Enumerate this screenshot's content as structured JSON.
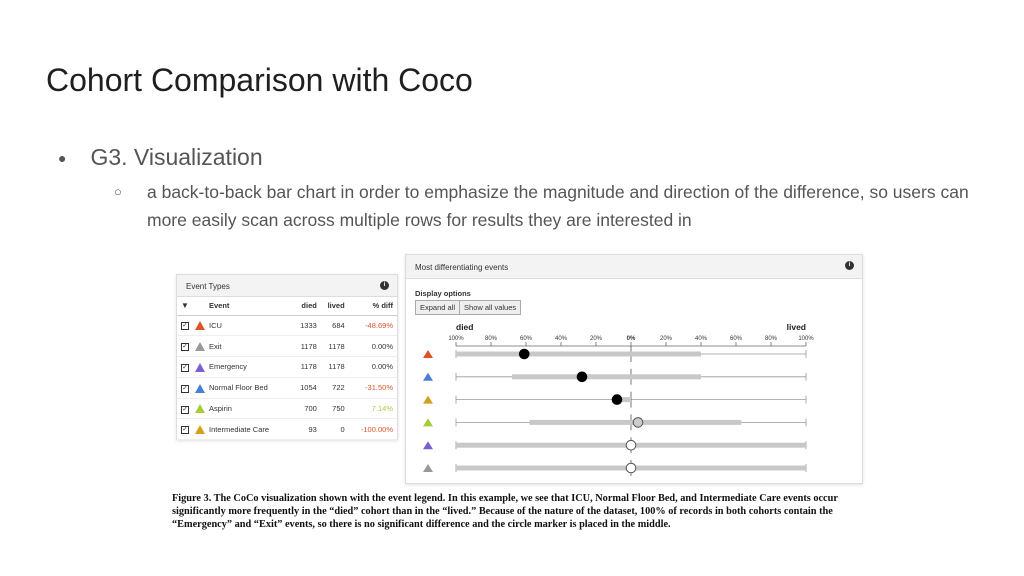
{
  "slide": {
    "title": "Cohort Comparison with Coco",
    "bullet": "G3. Visualization",
    "sub_bullet": "a back-to-back bar chart in order to emphasize the magnitude and direction of the difference, so users can more easily scan across multiple rows for results they are interested in"
  },
  "event_types": {
    "title": "Event Types",
    "headers": {
      "event": "Event",
      "died": "died",
      "lived": "lived",
      "diff": "% diff"
    },
    "rows": [
      {
        "name": "ICU",
        "died": "1333",
        "lived": "684",
        "diff": "-48.69%",
        "color": "#d9542b",
        "diff_color": "#d9542b"
      },
      {
        "name": "Exit",
        "died": "1178",
        "lived": "1178",
        "diff": "0.00%",
        "color": "#999999",
        "diff_color": "#333333"
      },
      {
        "name": "Emergency",
        "died": "1178",
        "lived": "1178",
        "diff": "0.00%",
        "color": "#7b5fd1",
        "diff_color": "#333333"
      },
      {
        "name": "Normal Floor Bed",
        "died": "1054",
        "lived": "722",
        "diff": "-31.50%",
        "color": "#4a7fd4",
        "diff_color": "#d9542b"
      },
      {
        "name": "Aspirin",
        "died": "700",
        "lived": "750",
        "diff": "7.14%",
        "color": "#a6cc3a",
        "diff_color": "#a6cc3a"
      },
      {
        "name": "Intermediate Care",
        "died": "93",
        "lived": "0",
        "diff": "-100.00%",
        "color": "#d4a020",
        "diff_color": "#d9542b"
      }
    ]
  },
  "diff_panel": {
    "title": "Most differentiating events",
    "display_options": "Display options",
    "expand_all": "Expand all",
    "show_all_values": "Show all values"
  },
  "chart_data": {
    "type": "scatter",
    "left_label": "died",
    "right_label": "lived",
    "ticks": [
      "100%",
      "80%",
      "60%",
      "40%",
      "20%",
      "0%",
      "20%",
      "40%",
      "60%",
      "80%",
      "100%"
    ],
    "rows": [
      {
        "event": "ICU",
        "color": "#d9542b",
        "bar": [
          -100,
          40
        ],
        "marker": -61,
        "marker_style": "filled"
      },
      {
        "event": "Normal Floor Bed",
        "color": "#4a7fd4",
        "bar": [
          -68,
          40
        ],
        "marker": -28,
        "marker_style": "filled"
      },
      {
        "event": "Intermediate Care",
        "color": "#d4a020",
        "bar": [
          -8,
          0
        ],
        "marker": -8,
        "marker_style": "filled"
      },
      {
        "event": "Aspirin",
        "color": "#a6cc3a",
        "bar": [
          -58,
          63
        ],
        "marker": 4,
        "marker_style": "hollow-gray"
      },
      {
        "event": "Emergency",
        "color": "#7b5fd1",
        "bar": [
          -100,
          100
        ],
        "marker": 0,
        "marker_style": "hollow"
      },
      {
        "event": "Exit",
        "color": "#999999",
        "bar": [
          -100,
          100
        ],
        "marker": 0,
        "marker_style": "hollow"
      }
    ]
  },
  "caption": "Figure 3. The CoCo visualization shown with the event legend. In this example, we see that ICU, Normal Floor Bed, and Intermediate Care events occur significantly more frequently in the “died” cohort than in the “lived.” Because of the nature of the dataset, 100% of records in both cohorts contain the “Emergency” and “Exit” events, so there is no significant difference and the circle marker is placed in the middle."
}
